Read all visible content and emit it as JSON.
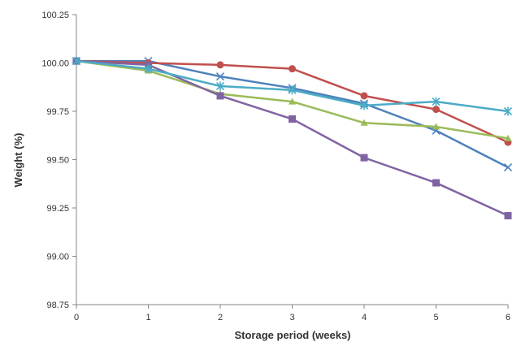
{
  "chart_data": {
    "type": "line",
    "xlabel": "Storage period (weeks)",
    "ylabel": "Weight (%)",
    "x": [
      0,
      1,
      2,
      3,
      4,
      5,
      6
    ],
    "xticks": [
      "0",
      "1",
      "2",
      "3",
      "4",
      "5",
      "6"
    ],
    "ylim": [
      98.75,
      100.25
    ],
    "yticks": [
      "98.75",
      "99.00",
      "99.25",
      "99.50",
      "99.75",
      "100.00",
      "100.25"
    ],
    "grid": false,
    "legend": "none",
    "series": [
      {
        "color": "#4f81bd",
        "marker": "x",
        "values": [
          100.01,
          100.01,
          99.93,
          99.87,
          99.79,
          99.65,
          99.46
        ]
      },
      {
        "color": "#c0504d",
        "marker": "circle",
        "values": [
          100.01,
          100.0,
          99.99,
          99.97,
          99.83,
          99.76,
          99.59
        ]
      },
      {
        "color": "#9bbb59",
        "marker": "triangle",
        "values": [
          100.01,
          99.96,
          99.84,
          99.8,
          99.69,
          99.67,
          99.61
        ]
      },
      {
        "color": "#8064a2",
        "marker": "square",
        "values": [
          100.01,
          99.99,
          99.83,
          99.71,
          99.51,
          99.38,
          99.21
        ]
      },
      {
        "color": "#4bacc6",
        "marker": "asterisk",
        "values": [
          100.01,
          99.97,
          99.88,
          99.86,
          99.78,
          99.8,
          99.75
        ]
      }
    ]
  }
}
